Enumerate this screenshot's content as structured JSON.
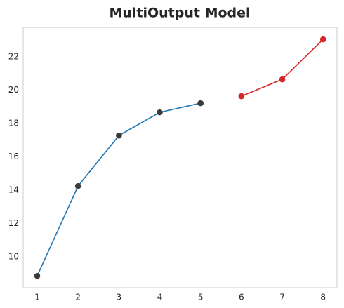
{
  "chart_data": {
    "type": "line",
    "title": "MultiOutput Model",
    "series": [
      {
        "color": "#1f77b4",
        "marker_color": "#3a3a3a",
        "x": [
          1,
          2,
          3,
          4,
          5
        ],
        "values": [
          8.86,
          14.25,
          17.28,
          18.67,
          19.22
        ]
      },
      {
        "color": "#d62728",
        "marker_color": "#d62728",
        "x": [
          6,
          7,
          8
        ],
        "values": [
          19.64,
          20.65,
          23.05
        ]
      }
    ],
    "xlim": [
      0.656,
      8.34
    ],
    "ylim": [
      8.15,
      23.77
    ],
    "xticks": [
      1,
      2,
      3,
      4,
      5,
      6,
      7,
      8
    ],
    "yticks": [
      10,
      12,
      14,
      16,
      18,
      20,
      22
    ],
    "grid": false
  }
}
